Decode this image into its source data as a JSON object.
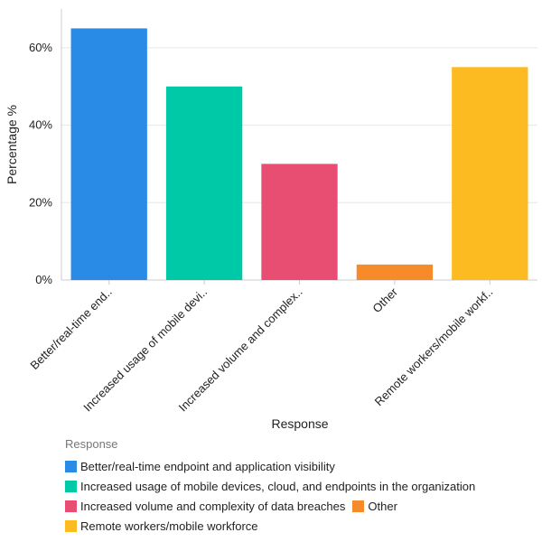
{
  "chart_data": {
    "type": "bar",
    "xlabel": "Response",
    "ylabel": "Percentage %",
    "ylim": [
      0,
      70
    ],
    "yticks": [
      0,
      20,
      40,
      60
    ],
    "ytick_labels": [
      "0%",
      "20%",
      "40%",
      "60%"
    ],
    "grid": true,
    "legend_title": "Response",
    "legend_position": "bottom",
    "categories": [
      "Better/real-time endpoint and application visibility",
      "Increased usage of mobile devices, cloud, and endpoints in the organization",
      "Increased volume and complexity of data breaches",
      "Other",
      "Remote workers/mobile workforce"
    ],
    "tick_labels": [
      "Better/real-time end..",
      "Increased usage of mobile devi..",
      "Increased volume and complex..",
      "Other",
      "Remote workers/mobile workf.."
    ],
    "values": [
      65,
      50,
      30,
      4,
      55
    ],
    "colors": [
      "#2a8be6",
      "#00c9a7",
      "#e84e72",
      "#f68b2c",
      "#fdbb22"
    ]
  }
}
